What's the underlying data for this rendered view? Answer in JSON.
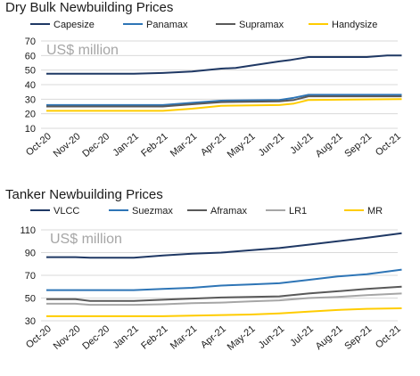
{
  "chart_data": [
    {
      "type": "line",
      "title": "Dry Bulk Newbuilding Prices",
      "annotation": "US$ million",
      "ylim": [
        10,
        70
      ],
      "yticks": [
        10,
        20,
        30,
        40,
        50,
        60,
        70
      ],
      "categories": [
        "Oct-20",
        "Nov-20",
        "Dec-20",
        "Jan-21",
        "Feb-21",
        "Mar-21",
        "Apr-21",
        "May-21",
        "Jun-21",
        "Jul-21",
        "Aug-21",
        "Sep-21",
        "Oct-21"
      ],
      "grid": true,
      "legend": "top",
      "series": [
        {
          "name": "Capesize",
          "color": "#1f3864",
          "x": [
            0,
            3,
            4,
            5,
            6,
            6.5,
            7,
            8,
            8.4,
            9,
            10,
            11,
            11.7,
            12.2
          ],
          "values": [
            47.5,
            47.5,
            48,
            49,
            51,
            51.5,
            53,
            56,
            57,
            59,
            59,
            59,
            60,
            60
          ]
        },
        {
          "name": "Panamax",
          "color": "#2e75b6",
          "x": [
            0,
            4,
            5,
            6,
            8,
            8.5,
            9,
            12.2
          ],
          "values": [
            26,
            26,
            27.5,
            29,
            29.5,
            31,
            33,
            33
          ]
        },
        {
          "name": "Supramax",
          "color": "#595959",
          "x": [
            0,
            4,
            5,
            6,
            8,
            8.5,
            9,
            12.2
          ],
          "values": [
            25,
            25,
            26.5,
            28,
            28.5,
            29.5,
            32,
            32
          ]
        },
        {
          "name": "Handysize",
          "color": "#ffcc00",
          "x": [
            0,
            4,
            5,
            6,
            8,
            8.5,
            9,
            12.2
          ],
          "values": [
            22,
            22,
            23.5,
            25.5,
            26,
            27,
            29.5,
            30
          ]
        }
      ]
    },
    {
      "type": "line",
      "title": "Tanker Newbuilding Prices",
      "annotation": "US$ million",
      "ylim": [
        30,
        110
      ],
      "yticks": [
        30,
        50,
        70,
        90,
        110
      ],
      "categories": [
        "Oct-20",
        "Nov-20",
        "Dec-20",
        "Jan-21",
        "Feb-21",
        "Mar-21",
        "Apr-21",
        "May-21",
        "Jun-21",
        "Jul-21",
        "Aug-21",
        "Sep-21",
        "Oct-21"
      ],
      "grid": true,
      "legend": "top",
      "series": [
        {
          "name": "VLCC",
          "color": "#1f3864",
          "x": [
            0,
            1,
            1.5,
            3,
            4,
            5,
            6,
            7,
            8,
            9,
            10,
            11,
            12.2
          ],
          "values": [
            86,
            86,
            85.5,
            85.5,
            87.5,
            89,
            90,
            92,
            94,
            97,
            100,
            103,
            107
          ]
        },
        {
          "name": "Suezmax",
          "color": "#2e75b6",
          "x": [
            0,
            3,
            4,
            5,
            6,
            7,
            8,
            9,
            10,
            11,
            12.2
          ],
          "values": [
            57,
            57,
            58,
            59,
            61,
            62,
            63,
            66,
            69,
            71,
            75
          ]
        },
        {
          "name": "Aframax",
          "color": "#595959",
          "x": [
            0,
            1,
            1.5,
            3,
            4,
            5,
            6,
            7,
            8,
            9,
            10,
            11,
            12.2
          ],
          "values": [
            49,
            49,
            47.5,
            47.5,
            48.5,
            49.5,
            50.5,
            51,
            51.5,
            54,
            56,
            58,
            60
          ]
        },
        {
          "name": "LR1",
          "color": "#a6a6a6",
          "x": [
            0,
            1,
            1.5,
            3,
            4,
            5,
            6,
            7,
            8,
            9,
            10,
            11,
            12.2
          ],
          "values": [
            45,
            45,
            44,
            44,
            44.5,
            45.5,
            46,
            47,
            48,
            50,
            51,
            52.5,
            54
          ]
        },
        {
          "name": "MR",
          "color": "#ffcc00",
          "x": [
            0,
            3,
            4,
            5,
            6,
            7,
            8,
            9,
            10,
            11,
            12.2
          ],
          "values": [
            34,
            34,
            34,
            34.5,
            35,
            35.5,
            36.5,
            38,
            39.5,
            40.5,
            41
          ]
        }
      ]
    }
  ]
}
